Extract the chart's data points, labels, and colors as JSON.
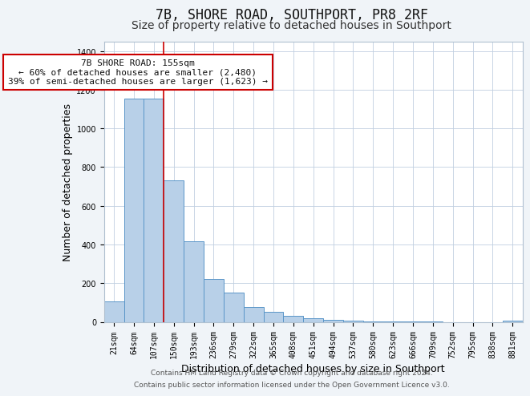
{
  "title": "7B, SHORE ROAD, SOUTHPORT, PR8 2RF",
  "subtitle": "Size of property relative to detached houses in Southport",
  "xlabel": "Distribution of detached houses by size in Southport",
  "ylabel": "Number of detached properties",
  "categories": [
    "21sqm",
    "64sqm",
    "107sqm",
    "150sqm",
    "193sqm",
    "236sqm",
    "279sqm",
    "322sqm",
    "365sqm",
    "408sqm",
    "451sqm",
    "494sqm",
    "537sqm",
    "580sqm",
    "623sqm",
    "666sqm",
    "709sqm",
    "752sqm",
    "795sqm",
    "838sqm",
    "881sqm"
  ],
  "values": [
    105,
    1155,
    1155,
    730,
    415,
    220,
    150,
    75,
    50,
    30,
    20,
    10,
    5,
    3,
    2,
    1,
    1,
    0,
    0,
    0,
    5
  ],
  "bar_color": "#b8d0e8",
  "bar_edge_color": "#5a96c8",
  "property_line_color": "#cc0000",
  "annotation_text": "7B SHORE ROAD: 155sqm\n← 60% of detached houses are smaller (2,480)\n39% of semi-detached houses are larger (1,623) →",
  "annotation_box_color": "#ffffff",
  "annotation_box_edge_color": "#cc0000",
  "ylim": [
    0,
    1450
  ],
  "yticks": [
    0,
    200,
    400,
    600,
    800,
    1000,
    1200,
    1400
  ],
  "footer_line1": "Contains HM Land Registry data © Crown copyright and database right 2024.",
  "footer_line2": "Contains public sector information licensed under the Open Government Licence v3.0.",
  "background_color": "#f0f4f8",
  "plot_background_color": "#ffffff",
  "title_fontsize": 12,
  "subtitle_fontsize": 10,
  "axis_label_fontsize": 9,
  "tick_fontsize": 7,
  "annotation_fontsize": 8,
  "footer_fontsize": 6.5,
  "prop_line_bar_index": 3
}
